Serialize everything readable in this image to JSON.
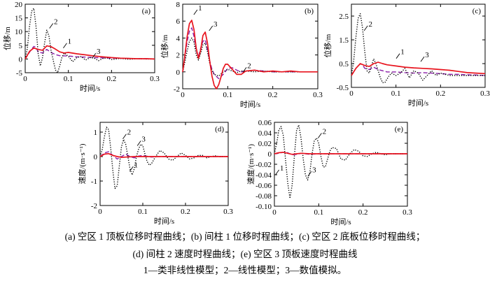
{
  "chart_data": [
    {
      "id": "a",
      "type": "line",
      "panel_label": "(a)",
      "xlabel": "时间/s",
      "ylabel": "位移/m",
      "xlim": [
        0,
        0.3
      ],
      "ylim": [
        -5,
        20
      ],
      "xticks": [
        "0",
        "0.1",
        "0.2",
        "0.3"
      ],
      "yticks": [
        "-5",
        "0",
        "5",
        "10",
        "15",
        "20"
      ],
      "series": [
        {
          "id": "1",
          "style": "solid",
          "color": "#e8141e",
          "x": [
            0,
            0.01,
            0.02,
            0.03,
            0.04,
            0.05,
            0.06,
            0.07,
            0.08,
            0.09,
            0.1,
            0.12,
            0.14,
            0.16,
            0.18,
            0.2,
            0.22,
            0.24,
            0.26,
            0.28,
            0.3
          ],
          "y": [
            0,
            2.8,
            4,
            3.5,
            3.2,
            4.8,
            4.5,
            3.6,
            2.6,
            2.2,
            2.4,
            1.9,
            1.5,
            1.1,
            0.8,
            0.5,
            0.3,
            0.2,
            0.1,
            0.1,
            0
          ]
        },
        {
          "id": "2",
          "style": "dotted",
          "color": "#000000",
          "x": [
            0,
            0.005,
            0.01,
            0.015,
            0.02,
            0.025,
            0.03,
            0.035,
            0.04,
            0.045,
            0.05,
            0.055,
            0.06,
            0.065,
            0.07,
            0.075,
            0.08,
            0.085,
            0.09,
            0.1,
            0.11,
            0.12,
            0.13,
            0.14,
            0.15,
            0.16,
            0.17,
            0.18,
            0.19,
            0.2,
            0.22,
            0.24,
            0.26,
            0.28,
            0.3
          ],
          "y": [
            0,
            4,
            12,
            17.5,
            18.5,
            12,
            2,
            -2.5,
            0.5,
            6,
            10.5,
            8.5,
            3,
            -0.5,
            -4,
            -5,
            -2.5,
            0.5,
            2.2,
            1,
            -1,
            0.6,
            0.9,
            -0.4,
            0.5,
            0.3,
            -0.6,
            0.2,
            0.4,
            -0.2,
            0.2,
            -0.1,
            0.1,
            0,
            0
          ]
        },
        {
          "id": "3",
          "style": "dashed",
          "color": "#8b1fa8",
          "x": [
            0,
            0.01,
            0.02,
            0.025,
            0.03,
            0.04,
            0.05,
            0.06,
            0.07,
            0.08,
            0.1,
            0.12,
            0.14,
            0.16,
            0.18,
            0.2,
            0.22,
            0.24,
            0.26,
            0.28,
            0.3
          ],
          "y": [
            0,
            2.5,
            4.6,
            4.3,
            2.5,
            2.2,
            3.5,
            2.4,
            1.6,
            1.2,
            1.1,
            0.8,
            0.7,
            0.5,
            0.4,
            0.3,
            0.25,
            0.2,
            0.1,
            0.1,
            0
          ]
        }
      ],
      "annotations": [
        {
          "text": "2",
          "x": 0.066,
          "y": 13.5
        },
        {
          "text": "1",
          "x": 0.098,
          "y": 6.3
        },
        {
          "text": "3",
          "x": 0.165,
          "y": 2.6
        }
      ]
    },
    {
      "id": "b",
      "type": "line",
      "panel_label": "(b)",
      "xlabel": "时间/s",
      "ylabel": "位移/m",
      "xlim": [
        0,
        0.3
      ],
      "ylim": [
        -2,
        8
      ],
      "xticks": [
        "0",
        "0.1",
        "0.2",
        "0.3"
      ],
      "yticks": [
        "-2",
        "0",
        "2",
        "4",
        "6",
        "8"
      ],
      "series": [
        {
          "id": "1",
          "style": "solid",
          "color": "#e8141e",
          "x": [
            0,
            0.005,
            0.01,
            0.015,
            0.02,
            0.025,
            0.03,
            0.035,
            0.04,
            0.045,
            0.05,
            0.055,
            0.06,
            0.065,
            0.07,
            0.075,
            0.08,
            0.085,
            0.09,
            0.095,
            0.1,
            0.11,
            0.12,
            0.13,
            0.14,
            0.16,
            0.18,
            0.2,
            0.22,
            0.24,
            0.26,
            0.28,
            0.3
          ],
          "y": [
            0,
            2,
            4.2,
            5.7,
            6.1,
            5,
            2.8,
            1.6,
            2.6,
            4.3,
            4.7,
            3.4,
            1.3,
            -0.5,
            -1.6,
            -2,
            -1.5,
            -0.6,
            0.4,
            0.9,
            0.9,
            0.3,
            -0.3,
            -0.3,
            0.1,
            0.2,
            0,
            0.1,
            0,
            0.1,
            0,
            0,
            0
          ]
        },
        {
          "id": "2",
          "style": "dotted",
          "color": "#000000",
          "x": [
            0,
            0.005,
            0.01,
            0.015,
            0.02,
            0.025,
            0.03,
            0.035,
            0.04,
            0.045,
            0.05,
            0.055,
            0.06,
            0.065,
            0.07,
            0.08,
            0.09,
            0.1,
            0.11,
            0.12,
            0.13,
            0.14,
            0.16,
            0.18,
            0.2,
            0.22,
            0.24,
            0.26,
            0.28,
            0.3
          ],
          "y": [
            0,
            1.2,
            2.5,
            3.6,
            4,
            3.5,
            2,
            1.4,
            2.2,
            3.2,
            3.4,
            2.4,
            1,
            0.2,
            -0.3,
            -0.5,
            0,
            0.3,
            0.1,
            -0.1,
            0.1,
            0.1,
            0,
            0.1,
            0,
            0,
            0,
            0,
            0,
            0
          ]
        },
        {
          "id": "3",
          "style": "dashed",
          "color": "#8b1fa8",
          "x": [
            0,
            0.005,
            0.01,
            0.015,
            0.02,
            0.025,
            0.03,
            0.035,
            0.04,
            0.045,
            0.05,
            0.055,
            0.06,
            0.065,
            0.07,
            0.08,
            0.09,
            0.1,
            0.11,
            0.12,
            0.13,
            0.14,
            0.16,
            0.18,
            0.2,
            0.22,
            0.24,
            0.26,
            0.28,
            0.3
          ],
          "y": [
            0,
            1.8,
            3.6,
            4.8,
            5.2,
            4.2,
            2.5,
            1.8,
            2.8,
            3.6,
            3.8,
            2.6,
            1.3,
            0.3,
            -0.3,
            -0.8,
            -0.3,
            0.4,
            0.5,
            0.2,
            0,
            0.1,
            0.2,
            0.1,
            0,
            0,
            0,
            0,
            0,
            0
          ]
        }
      ],
      "annotations": [
        {
          "text": "1",
          "x": 0.034,
          "y": 7.5
        },
        {
          "text": "3",
          "x": 0.068,
          "y": 5.6
        },
        {
          "text": "2",
          "x": 0.143,
          "y": 0.7
        }
      ]
    },
    {
      "id": "c",
      "type": "line",
      "panel_label": "(c)",
      "xlabel": "时间/s",
      "ylabel": "位移/m",
      "xlim": [
        0,
        0.3
      ],
      "ylim": [
        -0.5,
        3
      ],
      "xticks": [
        "0",
        "0.1",
        "0.2",
        "0.3"
      ],
      "yticks": [
        "-0.5",
        "0.5",
        "1.5",
        "2.5"
      ],
      "series": [
        {
          "id": "1",
          "style": "solid",
          "color": "#e8141e",
          "x": [
            0,
            0.01,
            0.02,
            0.03,
            0.04,
            0.05,
            0.06,
            0.07,
            0.08,
            0.1,
            0.12,
            0.14,
            0.16,
            0.18,
            0.2,
            0.22,
            0.24,
            0.26,
            0.28,
            0.3
          ],
          "y": [
            0,
            0.3,
            0.5,
            0.42,
            0.38,
            0.5,
            0.56,
            0.5,
            0.45,
            0.4,
            0.35,
            0.32,
            0.3,
            0.28,
            0.25,
            0.22,
            0.17,
            0.12,
            0.1,
            0.08
          ]
        },
        {
          "id": "2",
          "style": "dotted",
          "color": "#000000",
          "x": [
            0,
            0.005,
            0.01,
            0.015,
            0.02,
            0.025,
            0.03,
            0.035,
            0.04,
            0.045,
            0.05,
            0.055,
            0.06,
            0.065,
            0.07,
            0.075,
            0.08,
            0.085,
            0.09,
            0.095,
            0.1,
            0.11,
            0.12,
            0.13,
            0.14,
            0.15,
            0.16,
            0.17,
            0.18,
            0.19,
            0.2,
            0.22,
            0.24,
            0.26,
            0.28,
            0.3
          ],
          "y": [
            0,
            0.6,
            1.6,
            2.4,
            2.6,
            2,
            1,
            0.2,
            0.1,
            0.4,
            0.7,
            0.5,
            0.2,
            -0.1,
            -0.3,
            -0.3,
            -0.15,
            0,
            0.1,
            0.05,
            0,
            0.1,
            0.3,
            -0.1,
            0.2,
            0.1,
            -0.2,
            0,
            0.2,
            0,
            0.1,
            0,
            0,
            0,
            0,
            0
          ]
        },
        {
          "id": "3",
          "style": "dashed",
          "color": "#8b1fa8",
          "x": [
            0,
            0.01,
            0.02,
            0.025,
            0.03,
            0.04,
            0.05,
            0.06,
            0.07,
            0.08,
            0.1,
            0.12,
            0.14,
            0.16,
            0.18,
            0.2,
            0.22,
            0.24,
            0.26,
            0.28,
            0.3
          ],
          "y": [
            0,
            0.3,
            0.5,
            0.45,
            0.3,
            0.25,
            0.35,
            0.25,
            0.2,
            0.15,
            0.15,
            0.12,
            0.1,
            0.12,
            0.1,
            0.08,
            0.05,
            0.05,
            0.03,
            0.02,
            0
          ]
        }
      ],
      "annotations": [
        {
          "text": "2",
          "x": 0.038,
          "y": 2.15
        },
        {
          "text": "1",
          "x": 0.11,
          "y": 0.98
        },
        {
          "text": "3",
          "x": 0.165,
          "y": 0.85
        }
      ]
    },
    {
      "id": "d",
      "type": "line",
      "panel_label": "(d)",
      "xlabel": "时间/s",
      "ylabel": "速度/(m·s⁻¹)",
      "xlim": [
        0,
        0.3
      ],
      "ylim": [
        -2,
        1.4
      ],
      "xticks": [
        "0",
        "0.1",
        "0.2",
        "0.3"
      ],
      "yticks": [
        "-2",
        "-1",
        "0",
        "1"
      ],
      "series": [
        {
          "id": "1",
          "style": "solid",
          "color": "#e8141e",
          "x": [
            0,
            0.01,
            0.02,
            0.03,
            0.04,
            0.05,
            0.06,
            0.08,
            0.1,
            0.12,
            0.15,
            0.2,
            0.25,
            0.3
          ],
          "y": [
            0,
            0.1,
            0.12,
            0.05,
            0,
            -0.03,
            -0.02,
            0,
            0,
            0,
            0,
            0,
            0,
            0
          ]
        },
        {
          "id": "2",
          "style": "dotted",
          "color": "#000000",
          "x": [
            0,
            0.005,
            0.01,
            0.015,
            0.02,
            0.025,
            0.03,
            0.035,
            0.04,
            0.045,
            0.05,
            0.055,
            0.06,
            0.065,
            0.07,
            0.075,
            0.08,
            0.085,
            0.09,
            0.095,
            0.1,
            0.105,
            0.11,
            0.115,
            0.12,
            0.13,
            0.14,
            0.15,
            0.16,
            0.17,
            0.18,
            0.19,
            0.2,
            0.21,
            0.22,
            0.23,
            0.24,
            0.25,
            0.26,
            0.27,
            0.28,
            0.29,
            0.3
          ],
          "y": [
            0,
            0.3,
            0.8,
            1.2,
            1.1,
            0.3,
            -0.6,
            -1.3,
            -1.2,
            -0.4,
            0.4,
            0.7,
            0.5,
            0,
            -0.5,
            -0.75,
            -0.5,
            0,
            0.3,
            0.5,
            0.45,
            0.1,
            -0.2,
            -0.35,
            -0.3,
            0,
            0.25,
            0.15,
            -0.1,
            -0.15,
            0,
            0.15,
            0.05,
            -0.1,
            -0.05,
            0.05,
            0.05,
            -0.05,
            0,
            0.03,
            0,
            0,
            0
          ]
        },
        {
          "id": "3",
          "style": "dashed",
          "color": "#8b1fa8",
          "x": [
            0,
            0.01,
            0.02,
            0.03,
            0.04,
            0.05,
            0.06,
            0.07,
            0.08,
            0.09,
            0.1,
            0.12,
            0.14,
            0.16,
            0.2,
            0.25,
            0.3
          ],
          "y": [
            0,
            0.15,
            0.2,
            0.05,
            -0.1,
            0,
            0.1,
            0,
            -0.05,
            0.02,
            0.05,
            -0.02,
            0,
            0,
            0,
            0,
            0
          ]
        }
      ],
      "annotations": [
        {
          "text": "2",
          "x": 0.063,
          "y": 0.98
        },
        {
          "text": "3",
          "x": 0.097,
          "y": 0.7
        },
        {
          "text": "1",
          "x": 0.079,
          "y": -0.35
        }
      ]
    },
    {
      "id": "e",
      "type": "line",
      "panel_label": "(e)",
      "xlabel": "时间/s",
      "ylabel": "速度/(m·s⁻¹)",
      "xlim": [
        0,
        0.3
      ],
      "ylim": [
        -0.1,
        0.06
      ],
      "xticks": [
        "0",
        "0.1",
        "0.2",
        "0.3"
      ],
      "yticks": [
        "-0.10",
        "-0.08",
        "-0.06",
        "-0.04",
        "-0.02",
        "0",
        "0.02",
        "0.04",
        "0.06"
      ],
      "series": [
        {
          "id": "1",
          "style": "solid",
          "color": "#e8141e",
          "x": [
            0,
            0.01,
            0.02,
            0.03,
            0.04,
            0.05,
            0.06,
            0.08,
            0.1,
            0.15,
            0.2,
            0.25,
            0.3
          ],
          "y": [
            0,
            0.002,
            0.003,
            0.001,
            -0.001,
            0,
            0.001,
            0,
            0,
            0,
            0,
            0,
            0
          ]
        },
        {
          "id": "2",
          "style": "dotted",
          "color": "#000000",
          "x": [
            0,
            0.005,
            0.01,
            0.015,
            0.02,
            0.025,
            0.03,
            0.035,
            0.04,
            0.045,
            0.05,
            0.055,
            0.06,
            0.065,
            0.07,
            0.075,
            0.08,
            0.085,
            0.09,
            0.095,
            0.1,
            0.105,
            0.11,
            0.115,
            0.12,
            0.125,
            0.13,
            0.14,
            0.15,
            0.16,
            0.17,
            0.18,
            0.19,
            0.2,
            0.21,
            0.22,
            0.23,
            0.24,
            0.25,
            0.26,
            0.27,
            0.28,
            0.29,
            0.3
          ],
          "y": [
            0,
            0.02,
            0.045,
            0.052,
            0.035,
            -0.01,
            -0.055,
            -0.085,
            -0.06,
            -0.005,
            0.045,
            0.055,
            0.03,
            -0.01,
            -0.04,
            -0.05,
            -0.035,
            0,
            0.025,
            0.03,
            0.02,
            -0.005,
            -0.025,
            -0.025,
            -0.01,
            0.005,
            0.012,
            0.01,
            -0.01,
            -0.012,
            0,
            0.008,
            0.005,
            -0.004,
            -0.005,
            0,
            0.003,
            0,
            -0.002,
            0,
            0,
            0,
            0,
            0
          ]
        },
        {
          "id": "3",
          "style": "dashed",
          "color": "#8b1fa8",
          "x": [
            0,
            0.01,
            0.02,
            0.03,
            0.04,
            0.05,
            0.06,
            0.07,
            0.08,
            0.1,
            0.15,
            0.2,
            0.25,
            0.3
          ],
          "y": [
            0,
            0.001,
            0.003,
            0.002,
            -0.002,
            -0.001,
            0.001,
            0,
            -0.001,
            0,
            0,
            0,
            0,
            0
          ]
        }
      ],
      "annotations": [
        {
          "text": "2",
          "x": 0.108,
          "y": 0.042
        },
        {
          "text": "1",
          "x": 0.012,
          "y": -0.028
        },
        {
          "text": "3",
          "x": 0.085,
          "y": -0.031
        }
      ]
    }
  ],
  "caption": {
    "line1": "(a)  空区 1 顶板位移时程曲线；(b)  间柱 1 位移时程曲线；(c)  空区 2 底板位移时程曲线；",
    "line2": "(d)  间柱 2 速度时程曲线；(e)  空区 3 顶板速度时程曲线",
    "line3": "1—类非线性模型；2—线性模型；3—数值模拟。"
  }
}
